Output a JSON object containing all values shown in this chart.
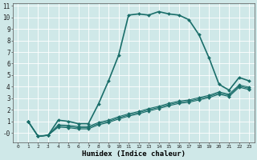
{
  "title": "",
  "xlabel": "Humidex (Indice chaleur)",
  "bg_color": "#cfe8e8",
  "grid_color": "#ffffff",
  "line_color": "#1a6e6a",
  "xlim": [
    -0.5,
    23.5
  ],
  "ylim": [
    -0.8,
    11.2
  ],
  "xticks": [
    0,
    1,
    2,
    3,
    4,
    5,
    6,
    7,
    8,
    9,
    10,
    11,
    12,
    13,
    14,
    15,
    16,
    17,
    18,
    19,
    20,
    21,
    22,
    23
  ],
  "yticks": [
    0,
    1,
    2,
    3,
    4,
    5,
    6,
    7,
    8,
    9,
    10,
    11
  ],
  "ytick_labels": [
    "-0",
    "1",
    "2",
    "3",
    "4",
    "5",
    "6",
    "7",
    "8",
    "9",
    "10",
    "11"
  ],
  "series": [
    {
      "x": [
        1,
        2,
        3,
        4,
        5,
        6,
        7,
        8,
        9,
        10,
        11,
        12,
        13,
        14,
        15,
        16,
        17,
        18,
        19,
        20,
        21,
        22,
        23
      ],
      "y": [
        1.0,
        -0.3,
        -0.2,
        1.1,
        1.0,
        0.8,
        0.8,
        2.5,
        4.5,
        6.7,
        10.2,
        10.3,
        10.2,
        10.5,
        10.3,
        10.2,
        9.8,
        8.5,
        6.5,
        4.2,
        3.7,
        4.8,
        4.5
      ],
      "lw": 1.2
    },
    {
      "x": [
        1,
        2,
        3,
        4,
        5,
        6,
        7,
        8,
        9,
        10,
        11,
        12,
        13,
        14,
        15,
        16,
        17,
        18,
        19,
        20,
        21,
        22,
        23
      ],
      "y": [
        1.0,
        -0.3,
        -0.2,
        0.7,
        0.65,
        0.55,
        0.55,
        0.9,
        1.1,
        1.4,
        1.65,
        1.85,
        2.1,
        2.3,
        2.55,
        2.75,
        2.85,
        3.05,
        3.25,
        3.55,
        3.35,
        4.15,
        3.95
      ],
      "lw": 0.8
    },
    {
      "x": [
        1,
        2,
        3,
        4,
        5,
        6,
        7,
        8,
        9,
        10,
        11,
        12,
        13,
        14,
        15,
        16,
        17,
        18,
        19,
        20,
        21,
        22,
        23
      ],
      "y": [
        1.0,
        -0.3,
        -0.2,
        0.6,
        0.55,
        0.45,
        0.45,
        0.8,
        1.0,
        1.3,
        1.55,
        1.75,
        2.0,
        2.2,
        2.45,
        2.65,
        2.75,
        2.95,
        3.15,
        3.45,
        3.25,
        4.05,
        3.85
      ],
      "lw": 0.8
    },
    {
      "x": [
        1,
        2,
        3,
        4,
        5,
        6,
        7,
        8,
        9,
        10,
        11,
        12,
        13,
        14,
        15,
        16,
        17,
        18,
        19,
        20,
        21,
        22,
        23
      ],
      "y": [
        1.0,
        -0.3,
        -0.2,
        0.5,
        0.45,
        0.35,
        0.35,
        0.7,
        0.9,
        1.2,
        1.45,
        1.65,
        1.9,
        2.1,
        2.35,
        2.55,
        2.65,
        2.85,
        3.05,
        3.35,
        3.15,
        3.95,
        3.75
      ],
      "lw": 0.8
    }
  ]
}
